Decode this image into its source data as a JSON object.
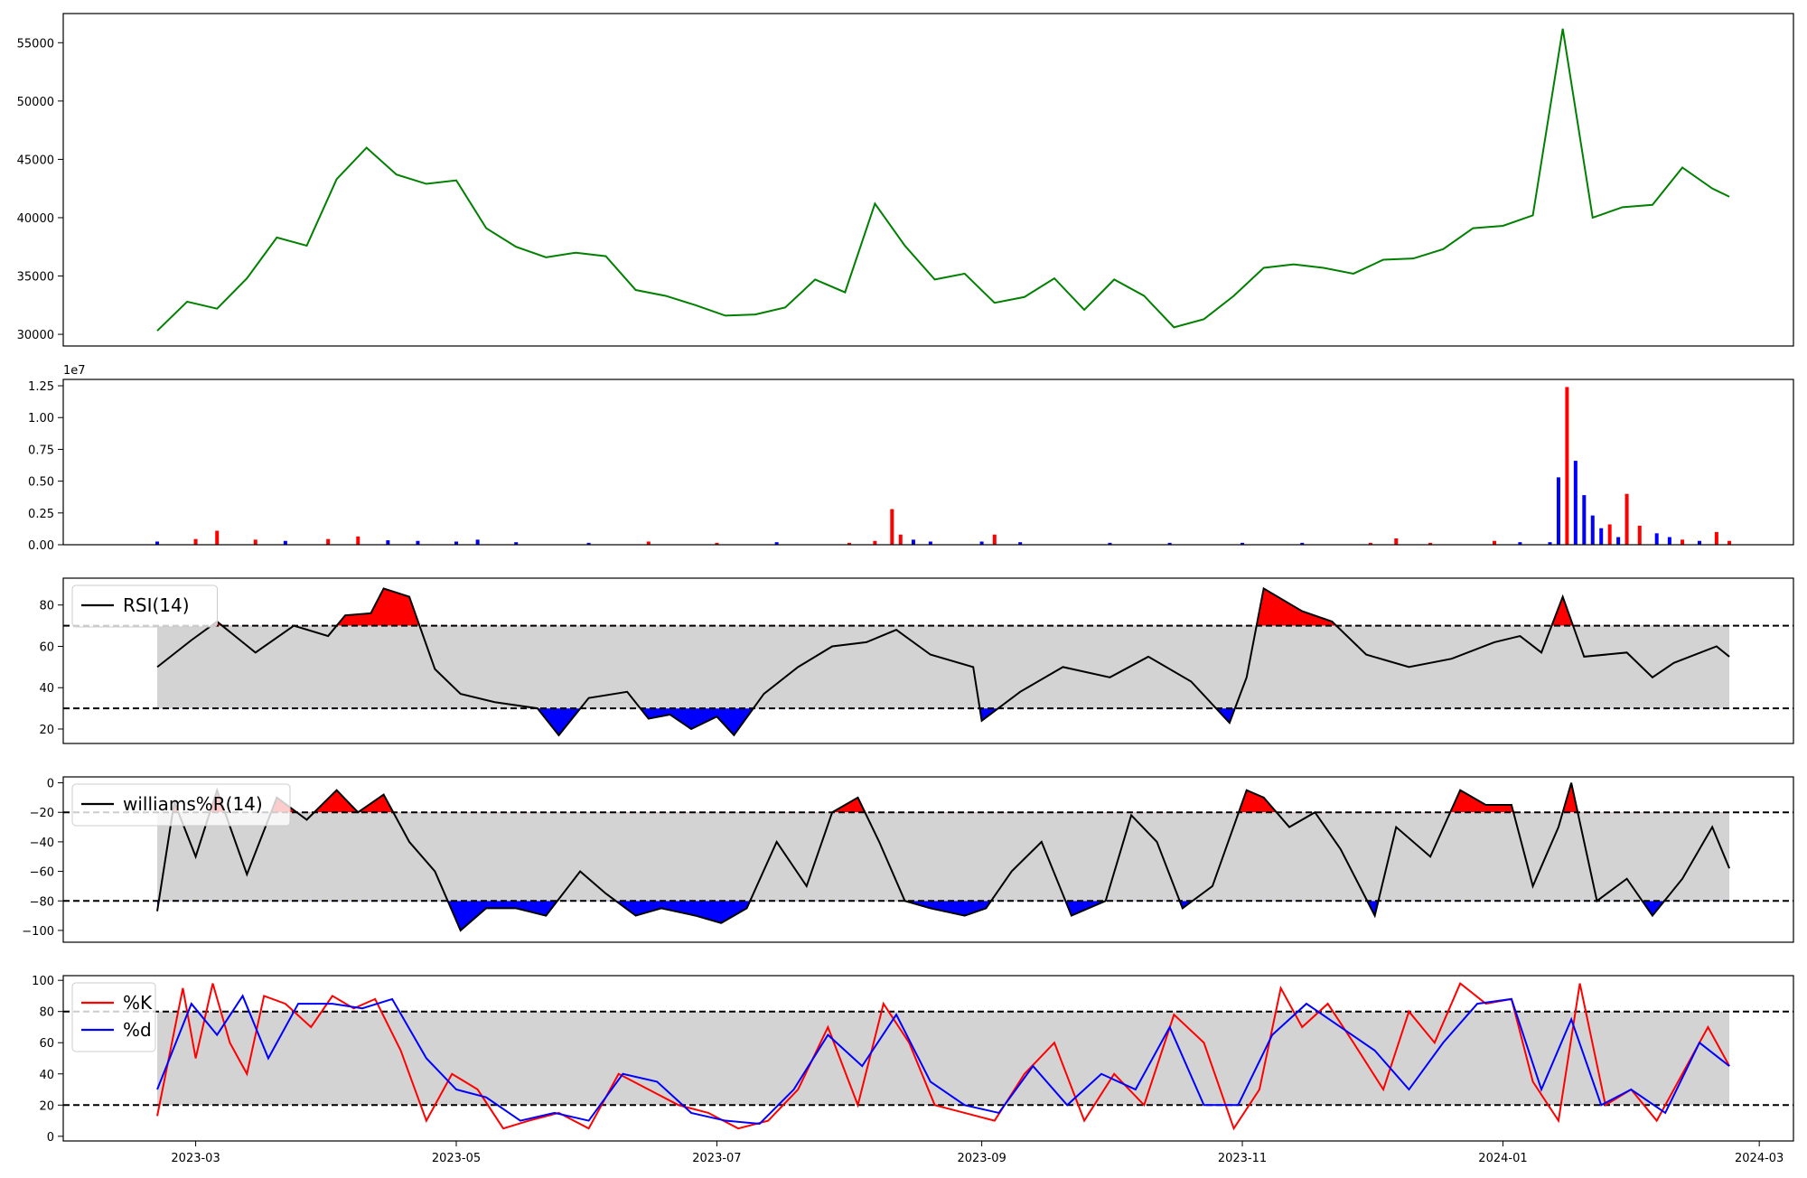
{
  "chart_data": [
    {
      "id": "price",
      "type": "line",
      "color": "#008000",
      "ylim": [
        29000,
        57500
      ],
      "y_ticks": [
        30000,
        35000,
        40000,
        45000,
        50000,
        55000
      ],
      "y_tick_labels": [
        "30000",
        "35000",
        "40000",
        "45000",
        "50000",
        "55000"
      ],
      "x": [
        "2023-02-20",
        "2023-02-27",
        "2023-03-06",
        "2023-03-13",
        "2023-03-20",
        "2023-03-27",
        "2023-04-03",
        "2023-04-10",
        "2023-04-17",
        "2023-04-24",
        "2023-05-01",
        "2023-05-08",
        "2023-05-15",
        "2023-05-22",
        "2023-05-29",
        "2023-06-05",
        "2023-06-12",
        "2023-06-19",
        "2023-06-26",
        "2023-07-03",
        "2023-07-10",
        "2023-07-17",
        "2023-07-24",
        "2023-07-31",
        "2023-08-07",
        "2023-08-14",
        "2023-08-21",
        "2023-08-28",
        "2023-09-04",
        "2023-09-11",
        "2023-09-18",
        "2023-09-25",
        "2023-10-02",
        "2023-10-09",
        "2023-10-16",
        "2023-10-23",
        "2023-10-30",
        "2023-11-06",
        "2023-11-13",
        "2023-11-20",
        "2023-11-27",
        "2023-12-04",
        "2023-12-11",
        "2023-12-18",
        "2023-12-25",
        "2024-01-01",
        "2024-01-08",
        "2024-01-15",
        "2024-01-22",
        "2024-01-29",
        "2024-02-05",
        "2024-02-12",
        "2024-02-19",
        "2024-02-23"
      ],
      "values": [
        30300,
        32800,
        32200,
        34800,
        38300,
        37600,
        43300,
        46000,
        43700,
        42900,
        43200,
        39100,
        37500,
        36600,
        37000,
        36700,
        33800,
        33300,
        32500,
        31600,
        31700,
        32300,
        34700,
        33600,
        41200,
        37600,
        34700,
        35200,
        32700,
        33200,
        34800,
        32100,
        34700,
        33300,
        30600,
        31300,
        33300,
        35700,
        36000,
        35700,
        35200,
        36400,
        36500,
        37300,
        39100,
        39300,
        40200,
        56200,
        40000,
        40900,
        41100,
        44300,
        42500,
        41800
      ]
    },
    {
      "id": "volume",
      "type": "bar",
      "exponent_label": "1e7",
      "ylim": [
        0,
        13000000
      ],
      "y_ticks": [
        0,
        2500000,
        5000000,
        7500000,
        10000000,
        12500000
      ],
      "y_tick_labels": [
        "0.00",
        "0.25",
        "0.50",
        "0.75",
        "1.00",
        "1.25"
      ],
      "colors": {
        "up": "#ff0000",
        "down": "#0000ff"
      },
      "x": [
        "2023-02-20",
        "2023-03-01",
        "2023-03-06",
        "2023-03-15",
        "2023-03-22",
        "2023-04-01",
        "2023-04-08",
        "2023-04-15",
        "2023-04-22",
        "2023-05-01",
        "2023-05-06",
        "2023-05-15",
        "2023-06-01",
        "2023-06-15",
        "2023-07-01",
        "2023-07-15",
        "2023-08-01",
        "2023-08-07",
        "2023-08-11",
        "2023-08-13",
        "2023-08-16",
        "2023-08-20",
        "2023-09-01",
        "2023-09-04",
        "2023-09-10",
        "2023-10-01",
        "2023-10-15",
        "2023-11-01",
        "2023-11-15",
        "2023-12-01",
        "2023-12-07",
        "2023-12-15",
        "2023-12-30",
        "2024-01-05",
        "2024-01-12",
        "2024-01-14",
        "2024-01-16",
        "2024-01-18",
        "2024-01-20",
        "2024-01-22",
        "2024-01-24",
        "2024-01-26",
        "2024-01-28",
        "2024-01-30",
        "2024-02-02",
        "2024-02-06",
        "2024-02-09",
        "2024-02-12",
        "2024-02-16",
        "2024-02-20",
        "2024-02-23"
      ],
      "values": [
        250000,
        450000,
        1100000,
        400000,
        300000,
        450000,
        650000,
        350000,
        300000,
        250000,
        400000,
        200000,
        150000,
        250000,
        150000,
        200000,
        150000,
        300000,
        2800000,
        800000,
        400000,
        250000,
        250000,
        800000,
        200000,
        150000,
        150000,
        150000,
        150000,
        150000,
        500000,
        150000,
        300000,
        200000,
        200000,
        5300000,
        12400000,
        6600000,
        3900000,
        2300000,
        1300000,
        1600000,
        600000,
        4000000,
        1500000,
        900000,
        600000,
        400000,
        300000,
        1000000,
        300000
      ],
      "directions": [
        "down",
        "up",
        "up",
        "up",
        "down",
        "up",
        "up",
        "down",
        "down",
        "down",
        "down",
        "down",
        "down",
        "up",
        "up",
        "down",
        "up",
        "up",
        "up",
        "up",
        "down",
        "down",
        "down",
        "up",
        "down",
        "down",
        "down",
        "down",
        "down",
        "up",
        "up",
        "up",
        "up",
        "down",
        "down",
        "down",
        "up",
        "down",
        "down",
        "down",
        "down",
        "up",
        "down",
        "up",
        "up",
        "down",
        "down",
        "up",
        "down",
        "up",
        "up"
      ]
    },
    {
      "id": "rsi",
      "type": "line",
      "legend": "RSI(14)",
      "ylim": [
        13,
        93
      ],
      "y_ticks": [
        20,
        40,
        60,
        80
      ],
      "y_tick_labels": [
        "20",
        "40",
        "60",
        "80"
      ],
      "upper": 70,
      "lower": 30,
      "fill_above_color": "#ff0000",
      "fill_below_color": "#0000ff",
      "band_color": "#d3d3d3",
      "x": [
        "2023-02-20",
        "2023-02-28",
        "2023-03-06",
        "2023-03-15",
        "2023-03-24",
        "2023-04-01",
        "2023-04-05",
        "2023-04-11",
        "2023-04-14",
        "2023-04-20",
        "2023-04-26",
        "2023-05-02",
        "2023-05-10",
        "2023-05-20",
        "2023-05-25",
        "2023-06-01",
        "2023-06-10",
        "2023-06-15",
        "2023-06-20",
        "2023-06-25",
        "2023-07-01",
        "2023-07-05",
        "2023-07-12",
        "2023-07-20",
        "2023-07-28",
        "2023-08-05",
        "2023-08-12",
        "2023-08-20",
        "2023-08-30",
        "2023-09-01",
        "2023-09-10",
        "2023-09-20",
        "2023-10-01",
        "2023-10-10",
        "2023-10-20",
        "2023-10-29",
        "2023-11-02",
        "2023-11-06",
        "2023-11-15",
        "2023-11-22",
        "2023-11-30",
        "2023-12-10",
        "2023-12-20",
        "2023-12-30",
        "2024-01-05",
        "2024-01-10",
        "2024-01-15",
        "2024-01-20",
        "2024-01-30",
        "2024-02-05",
        "2024-02-10",
        "2024-02-20",
        "2024-02-23"
      ],
      "values": [
        50,
        63,
        72,
        57,
        70,
        65,
        75,
        76,
        88,
        84,
        49,
        37,
        33,
        30,
        17,
        35,
        38,
        25,
        27,
        20,
        26,
        17,
        37,
        50,
        60,
        62,
        68,
        56,
        50,
        24,
        38,
        50,
        45,
        55,
        43,
        23,
        45,
        88,
        77,
        72,
        56,
        50,
        54,
        62,
        65,
        57,
        84,
        55,
        57,
        45,
        52,
        60,
        55
      ]
    },
    {
      "id": "williams",
      "type": "line",
      "legend": "williams%R(14)",
      "ylim": [
        -108,
        4
      ],
      "y_ticks": [
        -100,
        -80,
        -60,
        -40,
        -20,
        0
      ],
      "y_tick_labels": [
        "−100",
        "−80",
        "−60",
        "−40",
        "−20",
        "0"
      ],
      "upper": -20,
      "lower": -80,
      "fill_above_color": "#ff0000",
      "fill_below_color": "#0000ff",
      "band_color": "#d3d3d3",
      "x": [
        "2023-02-20",
        "2023-02-24",
        "2023-03-01",
        "2023-03-06",
        "2023-03-13",
        "2023-03-20",
        "2023-03-27",
        "2023-04-03",
        "2023-04-08",
        "2023-04-14",
        "2023-04-20",
        "2023-04-26",
        "2023-05-02",
        "2023-05-08",
        "2023-05-15",
        "2023-05-22",
        "2023-05-30",
        "2023-06-05",
        "2023-06-12",
        "2023-06-18",
        "2023-06-26",
        "2023-07-02",
        "2023-07-08",
        "2023-07-15",
        "2023-07-22",
        "2023-07-28",
        "2023-08-03",
        "2023-08-08",
        "2023-08-14",
        "2023-08-20",
        "2023-08-28",
        "2023-09-02",
        "2023-09-08",
        "2023-09-15",
        "2023-09-22",
        "2023-09-30",
        "2023-10-06",
        "2023-10-12",
        "2023-10-18",
        "2023-10-25",
        "2023-11-02",
        "2023-11-06",
        "2023-11-12",
        "2023-11-18",
        "2023-11-24",
        "2023-12-02",
        "2023-12-07",
        "2023-12-15",
        "2023-12-22",
        "2023-12-28",
        "2024-01-03",
        "2024-01-08",
        "2024-01-14",
        "2024-01-17",
        "2024-01-23",
        "2024-01-30",
        "2024-02-05",
        "2024-02-12",
        "2024-02-19",
        "2024-02-23"
      ],
      "values": [
        -87,
        -13,
        -50,
        -5,
        -62,
        -10,
        -25,
        -5,
        -20,
        -8,
        -40,
        -60,
        -100,
        -85,
        -85,
        -90,
        -60,
        -75,
        -90,
        -85,
        -90,
        -95,
        -85,
        -40,
        -70,
        -20,
        -10,
        -40,
        -80,
        -85,
        -90,
        -85,
        -60,
        -40,
        -90,
        -80,
        -22,
        -40,
        -85,
        -70,
        -5,
        -10,
        -30,
        -20,
        -45,
        -90,
        -30,
        -50,
        -5,
        -15,
        -15,
        -70,
        -30,
        0,
        -80,
        -65,
        -90,
        -65,
        -30,
        -58
      ]
    },
    {
      "id": "stochastic",
      "type": "line",
      "ylim": [
        -3,
        103
      ],
      "y_ticks": [
        0,
        20,
        40,
        60,
        80,
        100
      ],
      "y_tick_labels": [
        "0",
        "20",
        "40",
        "60",
        "80",
        "100"
      ],
      "upper": 80,
      "lower": 20,
      "band_color": "#d3d3d3",
      "x_tick_labels": [
        "2023-03",
        "2023-05",
        "2023-07",
        "2023-09",
        "2023-11",
        "2024-01",
        "2024-03"
      ],
      "x_ticks": [
        "2023-03-01",
        "2023-05-01",
        "2023-07-01",
        "2023-09-01",
        "2023-11-01",
        "2024-01-01",
        "2024-03-01"
      ],
      "series": [
        {
          "name": "%K",
          "color": "#ff0000",
          "x": [
            "2023-02-20",
            "2023-02-26",
            "2023-03-01",
            "2023-03-05",
            "2023-03-09",
            "2023-03-13",
            "2023-03-17",
            "2023-03-22",
            "2023-03-28",
            "2023-04-02",
            "2023-04-07",
            "2023-04-12",
            "2023-04-18",
            "2023-04-24",
            "2023-04-30",
            "2023-05-06",
            "2023-05-12",
            "2023-05-18",
            "2023-05-25",
            "2023-06-01",
            "2023-06-08",
            "2023-06-15",
            "2023-06-22",
            "2023-06-29",
            "2023-07-06",
            "2023-07-13",
            "2023-07-20",
            "2023-07-27",
            "2023-08-03",
            "2023-08-09",
            "2023-08-15",
            "2023-08-21",
            "2023-08-28",
            "2023-09-04",
            "2023-09-11",
            "2023-09-18",
            "2023-09-25",
            "2023-10-02",
            "2023-10-09",
            "2023-10-16",
            "2023-10-23",
            "2023-10-30",
            "2023-11-05",
            "2023-11-10",
            "2023-11-15",
            "2023-11-21",
            "2023-11-27",
            "2023-12-04",
            "2023-12-10",
            "2023-12-16",
            "2023-12-22",
            "2023-12-28",
            "2024-01-03",
            "2024-01-08",
            "2024-01-14",
            "2024-01-19",
            "2024-01-25",
            "2024-01-31",
            "2024-02-06",
            "2024-02-12",
            "2024-02-18",
            "2024-02-23"
          ],
          "values": [
            13,
            95,
            50,
            98,
            60,
            40,
            90,
            85,
            70,
            90,
            82,
            88,
            55,
            10,
            40,
            30,
            5,
            10,
            15,
            5,
            40,
            30,
            20,
            15,
            5,
            10,
            30,
            70,
            20,
            85,
            60,
            20,
            15,
            10,
            40,
            60,
            10,
            40,
            20,
            78,
            60,
            5,
            30,
            95,
            70,
            85,
            60,
            30,
            80,
            60,
            98,
            85,
            88,
            35,
            10,
            98,
            20,
            30,
            10,
            40,
            70,
            45
          ]
        },
        {
          "name": "%d",
          "color": "#0000ff",
          "x": [
            "2023-02-20",
            "2023-02-28",
            "2023-03-06",
            "2023-03-12",
            "2023-03-18",
            "2023-03-25",
            "2023-04-02",
            "2023-04-09",
            "2023-04-16",
            "2023-04-24",
            "2023-05-01",
            "2023-05-08",
            "2023-05-16",
            "2023-05-24",
            "2023-06-01",
            "2023-06-09",
            "2023-06-17",
            "2023-06-25",
            "2023-07-03",
            "2023-07-11",
            "2023-07-19",
            "2023-07-27",
            "2023-08-04",
            "2023-08-12",
            "2023-08-20",
            "2023-08-28",
            "2023-09-05",
            "2023-09-13",
            "2023-09-21",
            "2023-09-29",
            "2023-10-07",
            "2023-10-15",
            "2023-10-23",
            "2023-10-31",
            "2023-11-08",
            "2023-11-16",
            "2023-11-24",
            "2023-12-02",
            "2023-12-10",
            "2023-12-18",
            "2023-12-26",
            "2024-01-03",
            "2024-01-10",
            "2024-01-17",
            "2024-01-24",
            "2024-01-31",
            "2024-02-08",
            "2024-02-16",
            "2024-02-23"
          ],
          "values": [
            30,
            85,
            65,
            90,
            50,
            85,
            85,
            82,
            88,
            50,
            30,
            25,
            10,
            15,
            10,
            40,
            35,
            15,
            10,
            8,
            30,
            65,
            45,
            78,
            35,
            20,
            15,
            45,
            20,
            40,
            30,
            70,
            20,
            20,
            65,
            85,
            70,
            55,
            30,
            60,
            85,
            88,
            30,
            75,
            20,
            30,
            15,
            60,
            45
          ]
        }
      ]
    }
  ]
}
